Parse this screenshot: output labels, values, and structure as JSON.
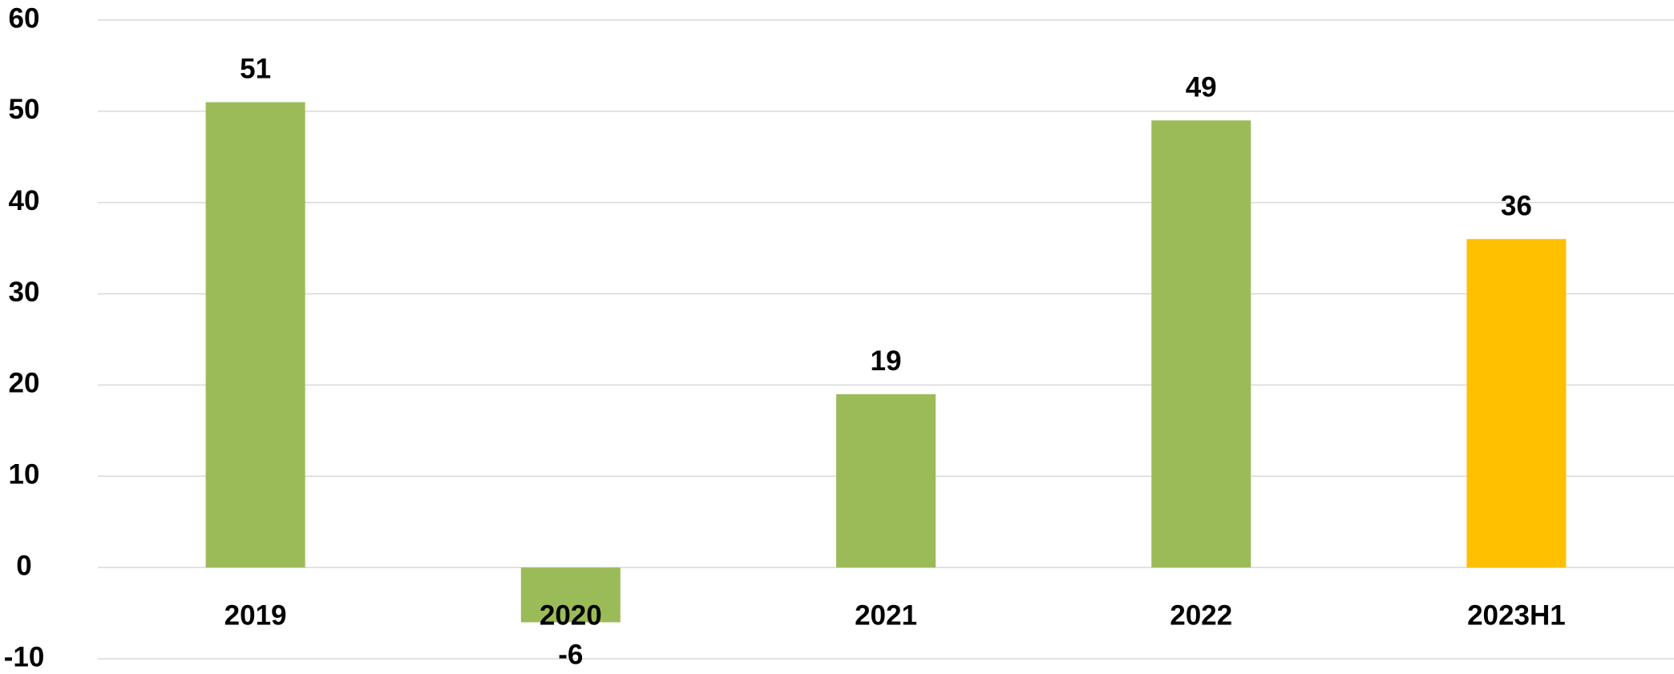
{
  "chart_data": {
    "type": "bar",
    "categories": [
      "2019",
      "2020",
      "2021",
      "2022",
      "2023H1"
    ],
    "values": [
      51,
      -6,
      19,
      49,
      36
    ],
    "colors": [
      "#9bbb59",
      "#9bbb59",
      "#9bbb59",
      "#9bbb59",
      "#ffc000"
    ],
    "ylim": [
      -10,
      60
    ],
    "yticks": [
      -10,
      0,
      10,
      20,
      30,
      40,
      50,
      60
    ],
    "grid": true
  }
}
